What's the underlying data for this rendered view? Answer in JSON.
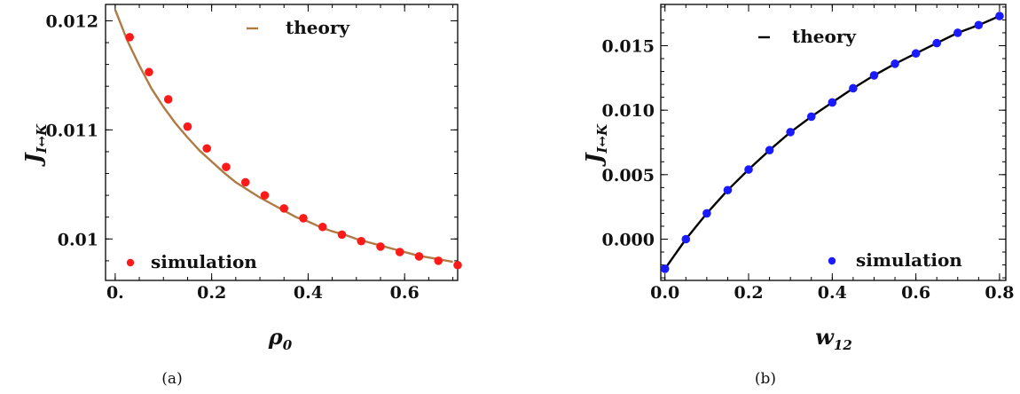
{
  "chart_data": [
    {
      "type": "line",
      "caption": "(a)",
      "xlabel": "ρ",
      "xlabel_sub": "0",
      "ylabel": "J",
      "ylabel_sub": "I↔K",
      "xlim": [
        -0.02,
        0.71
      ],
      "ylim": [
        0.00962,
        0.01215
      ],
      "xticks": [
        0.0,
        0.2,
        0.4,
        0.6
      ],
      "xtick_labels": [
        "0.",
        "0.2",
        "0.4",
        "0.6"
      ],
      "yticks": [
        0.01,
        0.011,
        0.012
      ],
      "ytick_labels": [
        "0.01",
        "0.011",
        "0.012"
      ],
      "grid": false,
      "series": [
        {
          "name": "theory",
          "style": "line",
          "color": "#b07a45",
          "x": [
            0.0,
            0.025,
            0.05,
            0.075,
            0.1,
            0.125,
            0.15,
            0.175,
            0.2,
            0.225,
            0.25,
            0.275,
            0.3,
            0.325,
            0.35,
            0.375,
            0.4,
            0.425,
            0.45,
            0.475,
            0.5,
            0.525,
            0.55,
            0.575,
            0.6,
            0.625,
            0.65,
            0.675,
            0.7
          ],
          "y": [
            0.0121,
            0.01182,
            0.01159,
            0.01138,
            0.01121,
            0.01106,
            0.01093,
            0.01081,
            0.01071,
            0.01061,
            0.01052,
            0.01045,
            0.01038,
            0.01032,
            0.01026,
            0.0102,
            0.01016,
            0.01011,
            0.01007,
            0.01004,
            0.01,
            0.00997,
            0.00994,
            0.00991,
            0.00988,
            0.00985,
            0.00983,
            0.00981,
            0.00979
          ]
        },
        {
          "name": "simulation",
          "style": "scatter",
          "color": "#ff1a1a",
          "x": [
            0.03,
            0.07,
            0.11,
            0.15,
            0.19,
            0.23,
            0.27,
            0.31,
            0.35,
            0.39,
            0.43,
            0.47,
            0.51,
            0.55,
            0.59,
            0.63,
            0.67,
            0.71
          ],
          "y": [
            0.01185,
            0.01153,
            0.01128,
            0.01103,
            0.01083,
            0.01066,
            0.01052,
            0.0104,
            0.01028,
            0.01019,
            0.01011,
            0.01004,
            0.00998,
            0.00993,
            0.00988,
            0.00984,
            0.0098,
            0.00976
          ]
        }
      ],
      "legend": [
        {
          "label": "theory",
          "placement": "top-center"
        },
        {
          "label": "simulation",
          "placement": "bottom-left"
        }
      ]
    },
    {
      "type": "line",
      "caption": "(b)",
      "xlabel": "w",
      "xlabel_sub": "12",
      "ylabel": "J",
      "ylabel_sub": "I↔K",
      "xlim": [
        -0.01,
        0.815
      ],
      "ylim": [
        -0.0032,
        0.0182
      ],
      "xticks": [
        0.0,
        0.2,
        0.4,
        0.6,
        0.8
      ],
      "xtick_labels": [
        "0.0",
        "0.2",
        "0.4",
        "0.6",
        "0.8"
      ],
      "yticks": [
        0.0,
        0.005,
        0.01,
        0.015
      ],
      "ytick_labels": [
        "0.000",
        "0.005",
        "0.010",
        "0.015"
      ],
      "grid": false,
      "series": [
        {
          "name": "theory",
          "style": "line",
          "color": "#000000",
          "x": [
            0.0,
            0.05,
            0.1,
            0.15,
            0.2,
            0.25,
            0.3,
            0.35,
            0.4,
            0.45,
            0.5,
            0.55,
            0.6,
            0.65,
            0.7,
            0.75,
            0.8
          ],
          "y": [
            -0.0023,
            0.0,
            0.002,
            0.0038,
            0.0054,
            0.0069,
            0.0083,
            0.0095,
            0.0106,
            0.0117,
            0.0127,
            0.0136,
            0.0144,
            0.0152,
            0.016,
            0.0166,
            0.0173
          ]
        },
        {
          "name": "simulation",
          "style": "scatter",
          "color": "#1a1aff",
          "x": [
            0.0,
            0.05,
            0.1,
            0.15,
            0.2,
            0.25,
            0.3,
            0.35,
            0.4,
            0.45,
            0.5,
            0.55,
            0.6,
            0.65,
            0.7,
            0.75,
            0.8
          ],
          "y": [
            -0.0023,
            0.0,
            0.002,
            0.0038,
            0.0054,
            0.0069,
            0.0083,
            0.0095,
            0.0106,
            0.0117,
            0.0127,
            0.0136,
            0.0144,
            0.0152,
            0.016,
            0.0166,
            0.0173
          ]
        }
      ],
      "legend": [
        {
          "label": "theory",
          "placement": "top-left"
        },
        {
          "label": "simulation",
          "placement": "bottom-right"
        }
      ]
    }
  ]
}
